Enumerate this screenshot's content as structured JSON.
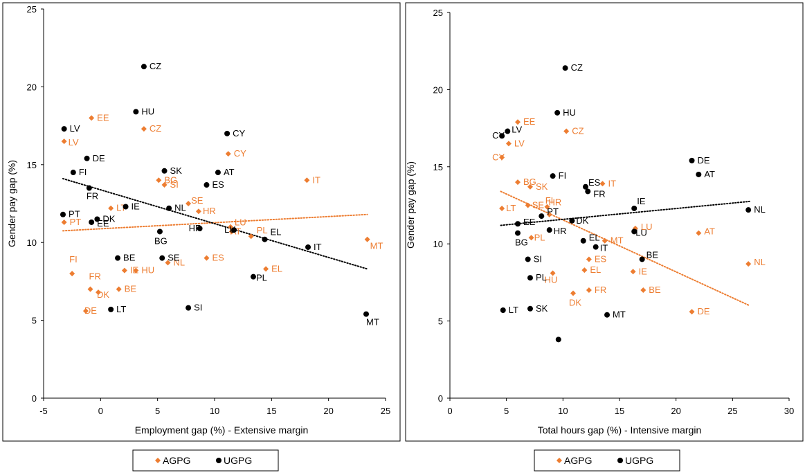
{
  "colors": {
    "AGPG": "#ED7D31",
    "UGPG": "#000000",
    "axis": "#000000",
    "frame": "#000000"
  },
  "chart_data": [
    {
      "type": "scatter",
      "xlabel": "Employment gap (%) - Extensive margin",
      "ylabel": "Gender pay gap (%)",
      "xlim": [
        -5,
        25
      ],
      "ylim": [
        0,
        25
      ],
      "xticks": [
        -5,
        0,
        5,
        10,
        15,
        20,
        25
      ],
      "yticks": [
        0,
        5,
        10,
        15,
        20,
        25
      ],
      "grid": false,
      "legend": "bottom",
      "series": [
        {
          "name": "AGPG",
          "marker": "diamond",
          "points": [
            {
              "label": "EE",
              "x": -0.8,
              "y": 18.0
            },
            {
              "label": "LV",
              "x": -3.2,
              "y": 16.5
            },
            {
              "label": "CZ",
              "x": 3.8,
              "y": 17.3
            },
            {
              "label": "CY",
              "x": 11.2,
              "y": 15.7
            },
            {
              "label": "BG",
              "x": 5.1,
              "y": 14.0
            },
            {
              "label": "SI",
              "x": 5.6,
              "y": 13.7
            },
            {
              "label": "IT",
              "x": 18.1,
              "y": 14.0
            },
            {
              "label": "SE",
              "x": 7.7,
              "y": 12.5
            },
            {
              "label": "HR",
              "x": 8.6,
              "y": 12.0
            },
            {
              "label": "LT",
              "x": 0.9,
              "y": 12.2
            },
            {
              "label": "PT",
              "x": -3.2,
              "y": 11.3
            },
            {
              "label": "LU",
              "x": 11.4,
              "y": 11.0
            },
            {
              "label": "AT",
              "x": 11.5,
              "y": 10.7
            },
            {
              "label": "PL",
              "x": 13.2,
              "y": 10.4
            },
            {
              "label": "MT",
              "x": 23.4,
              "y": 10.2
            },
            {
              "label": "ES",
              "x": 9.3,
              "y": 9.0
            },
            {
              "label": "NL",
              "x": 5.9,
              "y": 8.7
            },
            {
              "label": "IE",
              "x": 2.1,
              "y": 8.2
            },
            {
              "label": "HU",
              "x": 3.1,
              "y": 8.2
            },
            {
              "label": "EL",
              "x": 14.5,
              "y": 8.3
            },
            {
              "label": "FI",
              "x": -2.5,
              "y": 8.0
            },
            {
              "label": "FR",
              "x": -0.9,
              "y": 7.0
            },
            {
              "label": "BE",
              "x": 1.6,
              "y": 7.0
            },
            {
              "label": "DK",
              "x": -0.2,
              "y": 6.8
            },
            {
              "label": "DE",
              "x": -1.3,
              "y": 5.6
            }
          ]
        },
        {
          "name": "UGPG",
          "marker": "circle",
          "points": [
            {
              "label": "CZ",
              "x": 3.8,
              "y": 21.3
            },
            {
              "label": "HU",
              "x": 3.1,
              "y": 18.4
            },
            {
              "label": "LV",
              "x": -3.2,
              "y": 17.3
            },
            {
              "label": "CY",
              "x": 11.1,
              "y": 17.0
            },
            {
              "label": "DE",
              "x": -1.2,
              "y": 15.4
            },
            {
              "label": "FI",
              "x": -2.4,
              "y": 14.5
            },
            {
              "label": "SK",
              "x": 5.6,
              "y": 14.6
            },
            {
              "label": "AT",
              "x": 10.3,
              "y": 14.5
            },
            {
              "label": "ES",
              "x": 9.3,
              "y": 13.7
            },
            {
              "label": "FR",
              "x": -1.0,
              "y": 13.5
            },
            {
              "label": "PT",
              "x": -3.3,
              "y": 11.8
            },
            {
              "label": "IE",
              "x": 2.2,
              "y": 12.3
            },
            {
              "label": "NL",
              "x": 6.0,
              "y": 12.2
            },
            {
              "label": "DK",
              "x": -0.3,
              "y": 11.5
            },
            {
              "label": "EE",
              "x": -0.8,
              "y": 11.3
            },
            {
              "label": "HR",
              "x": 8.7,
              "y": 10.9
            },
            {
              "label": "BG",
              "x": 5.2,
              "y": 10.7
            },
            {
              "label": "LU",
              "x": 11.7,
              "y": 10.8
            },
            {
              "label": "EL",
              "x": 14.4,
              "y": 10.2
            },
            {
              "label": "IT",
              "x": 18.2,
              "y": 9.7
            },
            {
              "label": "BE",
              "x": 1.5,
              "y": 9.0
            },
            {
              "label": "SE",
              "x": 5.4,
              "y": 9.0
            },
            {
              "label": "PL",
              "x": 13.4,
              "y": 7.8
            },
            {
              "label": "SI",
              "x": 7.7,
              "y": 5.8
            },
            {
              "label": "LT",
              "x": 0.9,
              "y": 5.7
            },
            {
              "label": "MT",
              "x": 23.3,
              "y": 5.4
            }
          ]
        }
      ],
      "trendlines": [
        {
          "series": "AGPG",
          "x": [
            -3.3,
            23.4
          ],
          "y": [
            10.75,
            11.8
          ]
        },
        {
          "series": "UGPG",
          "x": [
            -3.3,
            23.4
          ],
          "y": [
            14.1,
            8.3
          ]
        }
      ]
    },
    {
      "type": "scatter",
      "xlabel": "Total hours gap (%) - Intensive margin",
      "ylabel": "Gender pay gap (%)",
      "xlim": [
        0,
        30
      ],
      "ylim": [
        0,
        25
      ],
      "xticks": [
        0,
        5,
        10,
        15,
        20,
        25,
        30
      ],
      "yticks": [
        0,
        5,
        10,
        15,
        20,
        25
      ],
      "grid": false,
      "legend": "bottom",
      "series": [
        {
          "name": "AGPG",
          "marker": "diamond",
          "points": [
            {
              "label": "EE",
              "x": 6.0,
              "y": 17.9
            },
            {
              "label": "CZ",
              "x": 10.3,
              "y": 17.3
            },
            {
              "label": "LV",
              "x": 5.2,
              "y": 16.5
            },
            {
              "label": "CY",
              "x": 4.6,
              "y": 15.6
            },
            {
              "label": "BG",
              "x": 6.0,
              "y": 14.0
            },
            {
              "label": "SK",
              "x": 7.1,
              "y": 13.7
            },
            {
              "label": "IT",
              "x": 13.5,
              "y": 13.9
            },
            {
              "label": "LT",
              "x": 4.6,
              "y": 12.3
            },
            {
              "label": "SE",
              "x": 6.9,
              "y": 12.5
            },
            {
              "label": "HR",
              "x": 8.6,
              "y": 12.4
            },
            {
              "label": "FI",
              "x": 8.8,
              "y": 11.9
            },
            {
              "label": "LU",
              "x": 16.4,
              "y": 11.0
            },
            {
              "label": "AT",
              "x": 22.0,
              "y": 10.7
            },
            {
              "label": "PL",
              "x": 7.2,
              "y": 10.4
            },
            {
              "label": "MT",
              "x": 13.7,
              "y": 10.2
            },
            {
              "label": "ES",
              "x": 12.3,
              "y": 9.0
            },
            {
              "label": "NL",
              "x": 26.4,
              "y": 8.7
            },
            {
              "label": "IE",
              "x": 16.2,
              "y": 8.2
            },
            {
              "label": "EL",
              "x": 11.9,
              "y": 8.3
            },
            {
              "label": "HU",
              "x": 9.1,
              "y": 8.1
            },
            {
              "label": "FR",
              "x": 12.3,
              "y": 7.0
            },
            {
              "label": "BE",
              "x": 17.1,
              "y": 7.0
            },
            {
              "label": "DK",
              "x": 10.9,
              "y": 6.8
            },
            {
              "label": "DE",
              "x": 21.4,
              "y": 5.6
            }
          ]
        },
        {
          "name": "UGPG",
          "marker": "circle",
          "points": [
            {
              "label": "CZ",
              "x": 10.2,
              "y": 21.4
            },
            {
              "label": "HU",
              "x": 9.5,
              "y": 18.5
            },
            {
              "label": "LV",
              "x": 5.1,
              "y": 17.3
            },
            {
              "label": "CY",
              "x": 4.6,
              "y": 17.0
            },
            {
              "label": "DE",
              "x": 21.4,
              "y": 15.4
            },
            {
              "label": "AT",
              "x": 22.0,
              "y": 14.5
            },
            {
              "label": "FI",
              "x": 9.1,
              "y": 14.4
            },
            {
              "label": "ES",
              "x": 12.0,
              "y": 13.7
            },
            {
              "label": "FR",
              "x": 12.2,
              "y": 13.4
            },
            {
              "label": "IE",
              "x": 16.3,
              "y": 12.3
            },
            {
              "label": "NL",
              "x": 26.4,
              "y": 12.2
            },
            {
              "label": "PT",
              "x": 8.1,
              "y": 11.8
            },
            {
              "label": "DK",
              "x": 10.8,
              "y": 11.5
            },
            {
              "label": "EE",
              "x": 6.0,
              "y": 11.3
            },
            {
              "label": "HR",
              "x": 8.8,
              "y": 10.9
            },
            {
              "label": "BG",
              "x": 6.0,
              "y": 10.7
            },
            {
              "label": "LU",
              "x": 16.3,
              "y": 10.8
            },
            {
              "label": "EL",
              "x": 11.8,
              "y": 10.2
            },
            {
              "label": "IT",
              "x": 12.9,
              "y": 9.8
            },
            {
              "label": "BE",
              "x": 17.0,
              "y": 9.0
            },
            {
              "label": "SI",
              "x": 6.9,
              "y": 9.0
            },
            {
              "label": "PL",
              "x": 7.1,
              "y": 7.8
            },
            {
              "label": "SK",
              "x": 7.1,
              "y": 5.8
            },
            {
              "label": "LT",
              "x": 4.7,
              "y": 5.7
            },
            {
              "label": "MT",
              "x": 13.9,
              "y": 5.4
            },
            {
              "label": "",
              "x": 9.6,
              "y": 3.8
            }
          ]
        }
      ],
      "trendlines": [
        {
          "series": "AGPG",
          "x": [
            4.5,
            26.5
          ],
          "y": [
            13.4,
            6.0
          ]
        },
        {
          "series": "UGPG",
          "x": [
            4.5,
            26.5
          ],
          "y": [
            11.2,
            12.75
          ]
        }
      ]
    }
  ]
}
